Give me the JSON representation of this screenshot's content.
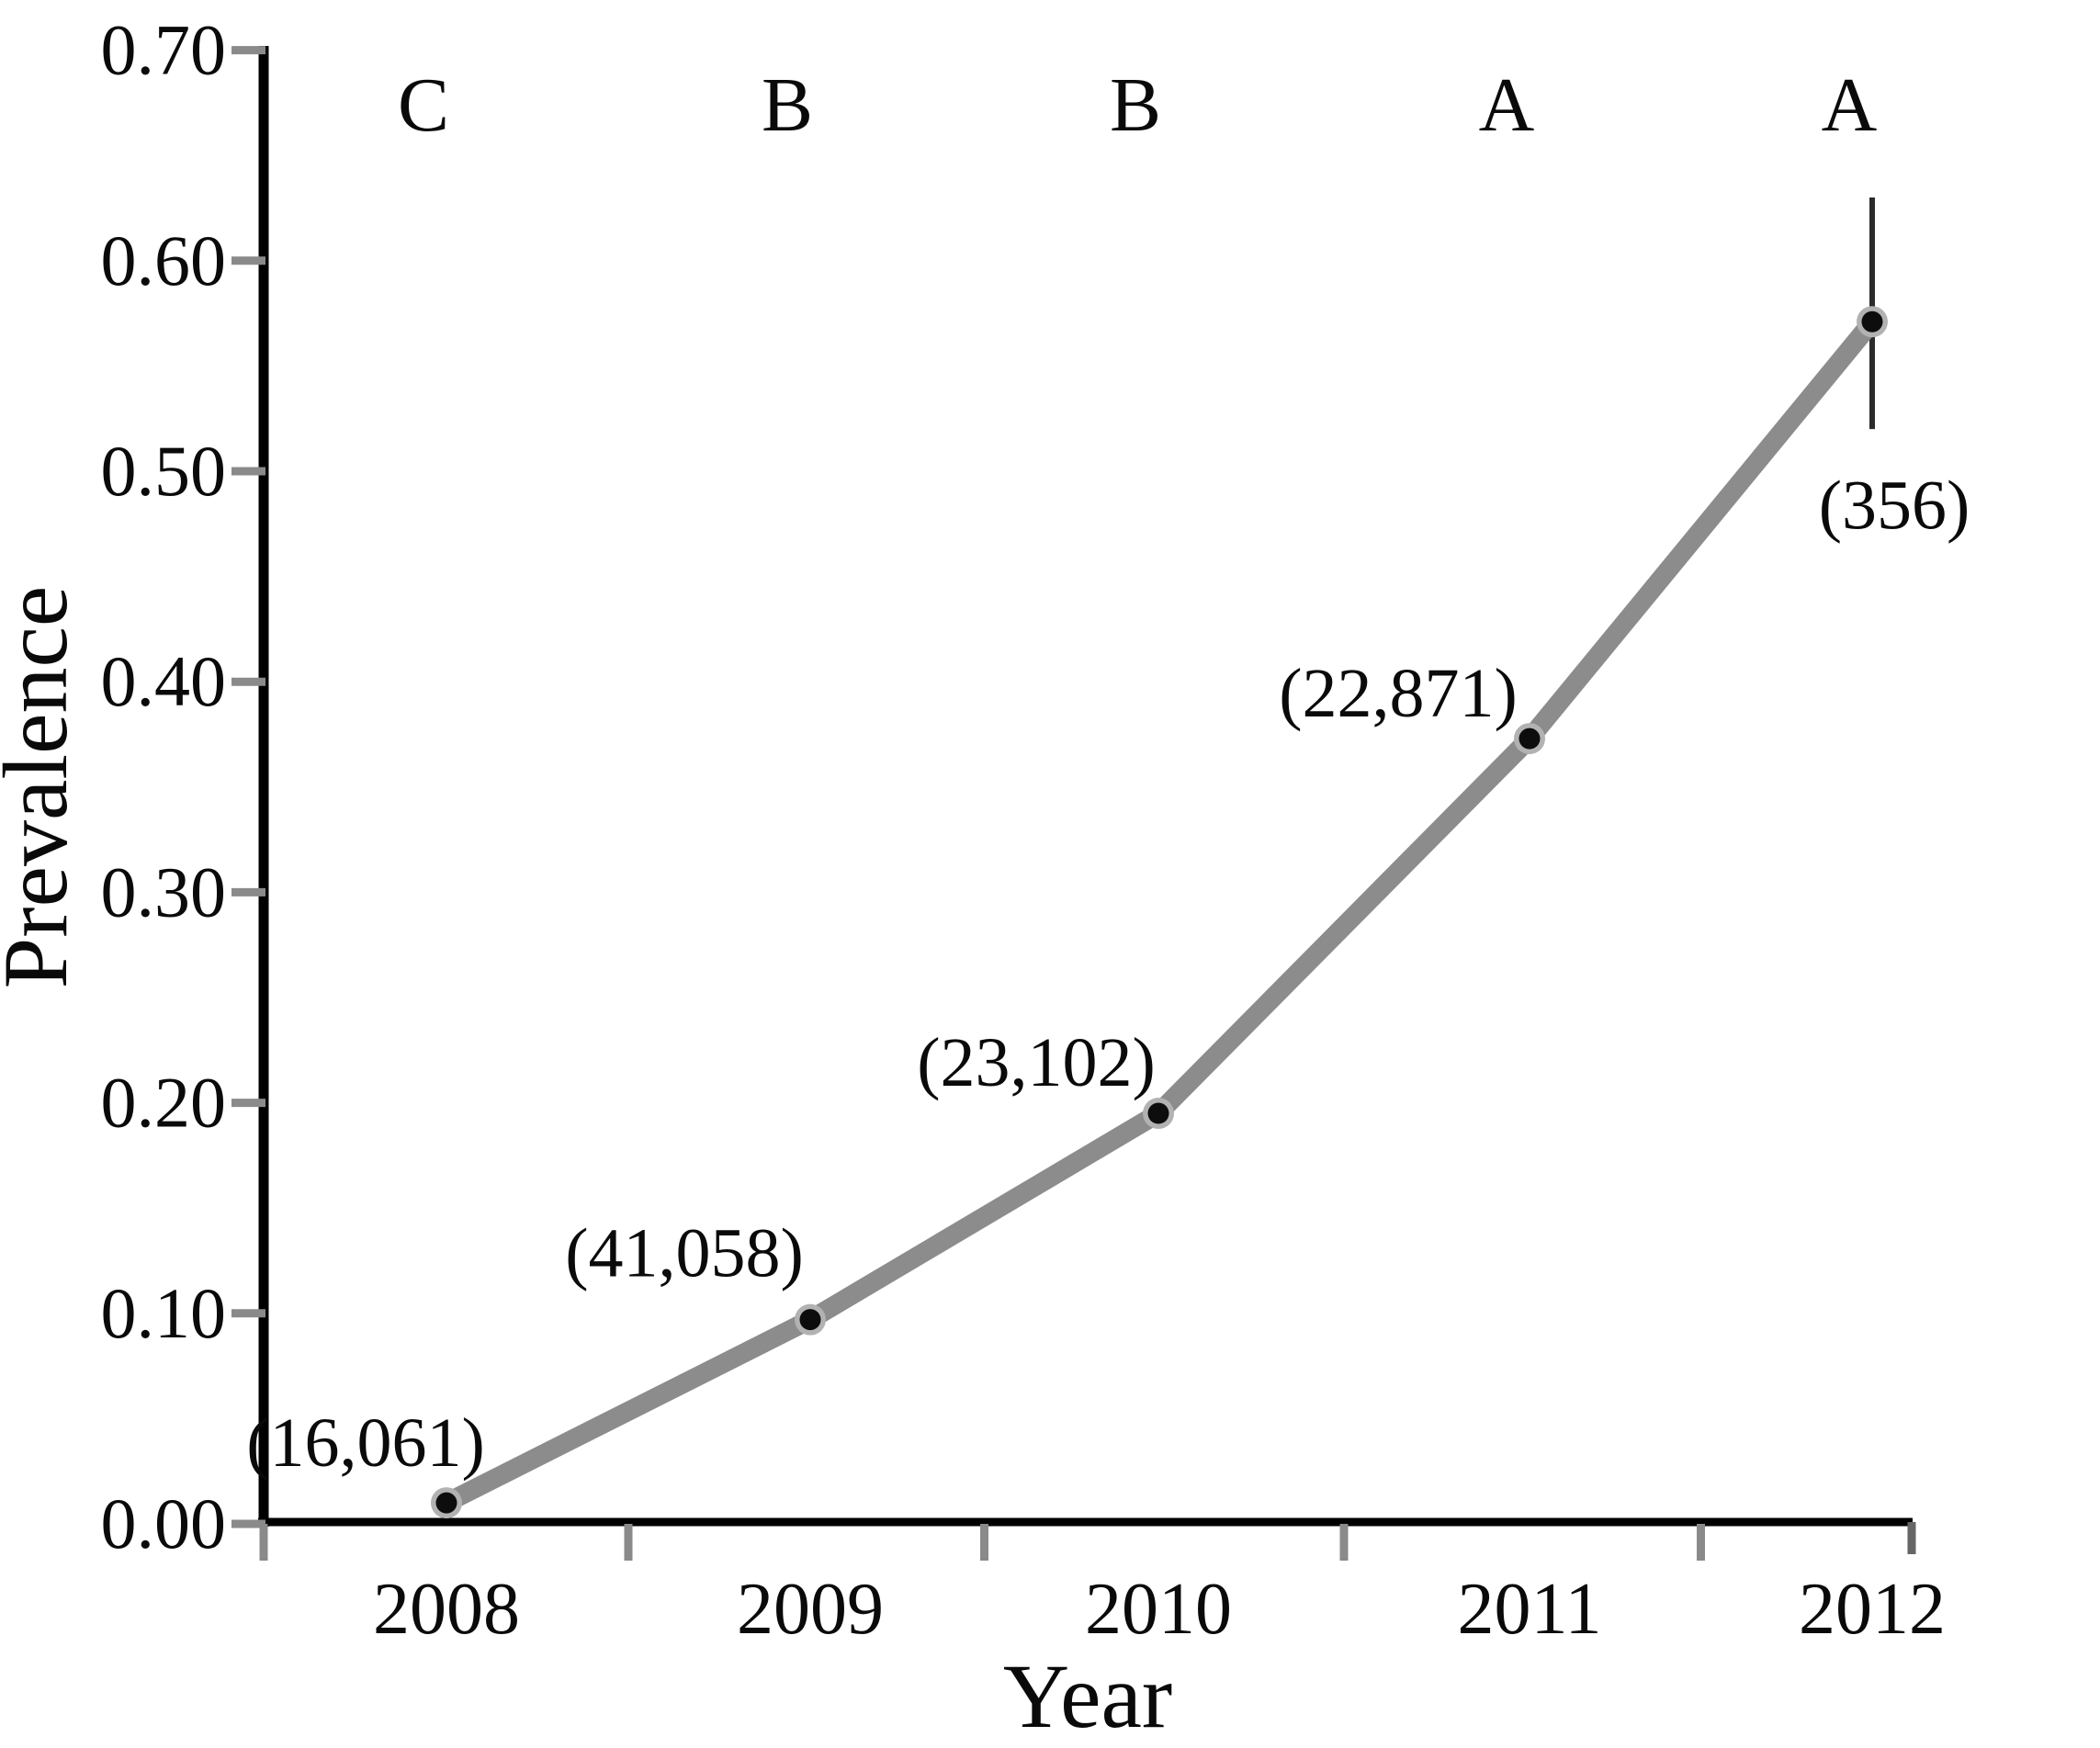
{
  "chart_data": {
    "type": "line",
    "title": "",
    "xlabel": "Year",
    "ylabel": "Prevalence",
    "categories": [
      "2008",
      "2009",
      "2010",
      "2011",
      "2012"
    ],
    "series": [
      {
        "name": "Prevalence",
        "values": [
          0.01,
          0.097,
          0.195,
          0.373,
          0.571
        ]
      }
    ],
    "point_annotations": [
      "(16,061)",
      "(41,058)",
      "(23,102)",
      "(22,871)",
      "(356)"
    ],
    "top_letters": [
      "C",
      "B",
      "B",
      "A",
      "A"
    ],
    "error_bar": {
      "category": "2012",
      "low": 0.52,
      "high": 0.63
    },
    "ylim": [
      0.0,
      0.7
    ],
    "ytick_labels": [
      "0.00",
      "0.10",
      "0.20",
      "0.30",
      "0.40",
      "0.50",
      "0.60",
      "0.70"
    ],
    "ytick_values": [
      0.0,
      0.1,
      0.2,
      0.3,
      0.4,
      0.5,
      0.6,
      0.7
    ],
    "grid": "off",
    "legend": "none",
    "colors": {
      "line": "#8c8c8c",
      "marker_ring": "#b2b2b2",
      "marker_core": "#0d0d0d",
      "axis": "#000000",
      "tick": "#8a8a8a",
      "error_bar": "#2b2b2b",
      "text": "#0a0a0a",
      "background": "#ffffff"
    }
  }
}
